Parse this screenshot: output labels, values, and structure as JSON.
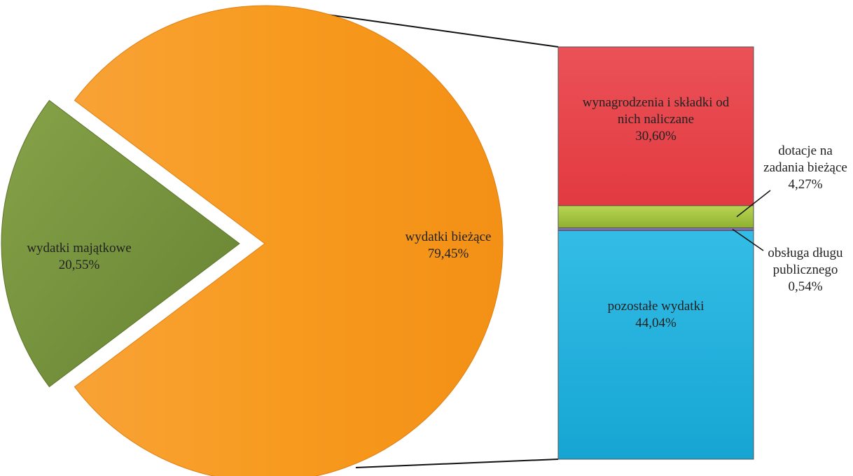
{
  "chart_data": {
    "type": "bar-of-pie",
    "pie": {
      "slices": [
        {
          "label": "wydatki majątkowe",
          "value": 20.55,
          "value_label": "20,55%",
          "color": "#77933c",
          "exploded": true
        },
        {
          "label": "wydatki bieżące",
          "value": 79.45,
          "value_label": "79,45%",
          "color": "#f79a1e",
          "exploded": false
        }
      ]
    },
    "stacked_bar": {
      "parent": "wydatki bieżące",
      "segments": [
        {
          "label": "wynagrodzenia i składki od nich naliczane",
          "label_lines": [
            "wynagrodzenia i składki od",
            "nich naliczane"
          ],
          "value": 30.6,
          "value_label": "30,60%",
          "color": "#e8434a"
        },
        {
          "label": "dotacje na zadania bieżące",
          "label_lines": [
            "dotacje na",
            "zadania bieżące"
          ],
          "value": 4.27,
          "value_label": "4,27%",
          "color": "#a3c43c"
        },
        {
          "label": "obsługa długu publicznego",
          "label_lines": [
            "obsługa długu",
            "publicznego"
          ],
          "value": 0.54,
          "value_label": "0,54%",
          "color": "#7b6fb0"
        },
        {
          "label": "pozostałe wydatki",
          "label_lines": [
            "pozostałe wydatki"
          ],
          "value": 44.04,
          "value_label": "44,04%",
          "color": "#1eb2de"
        }
      ]
    }
  }
}
